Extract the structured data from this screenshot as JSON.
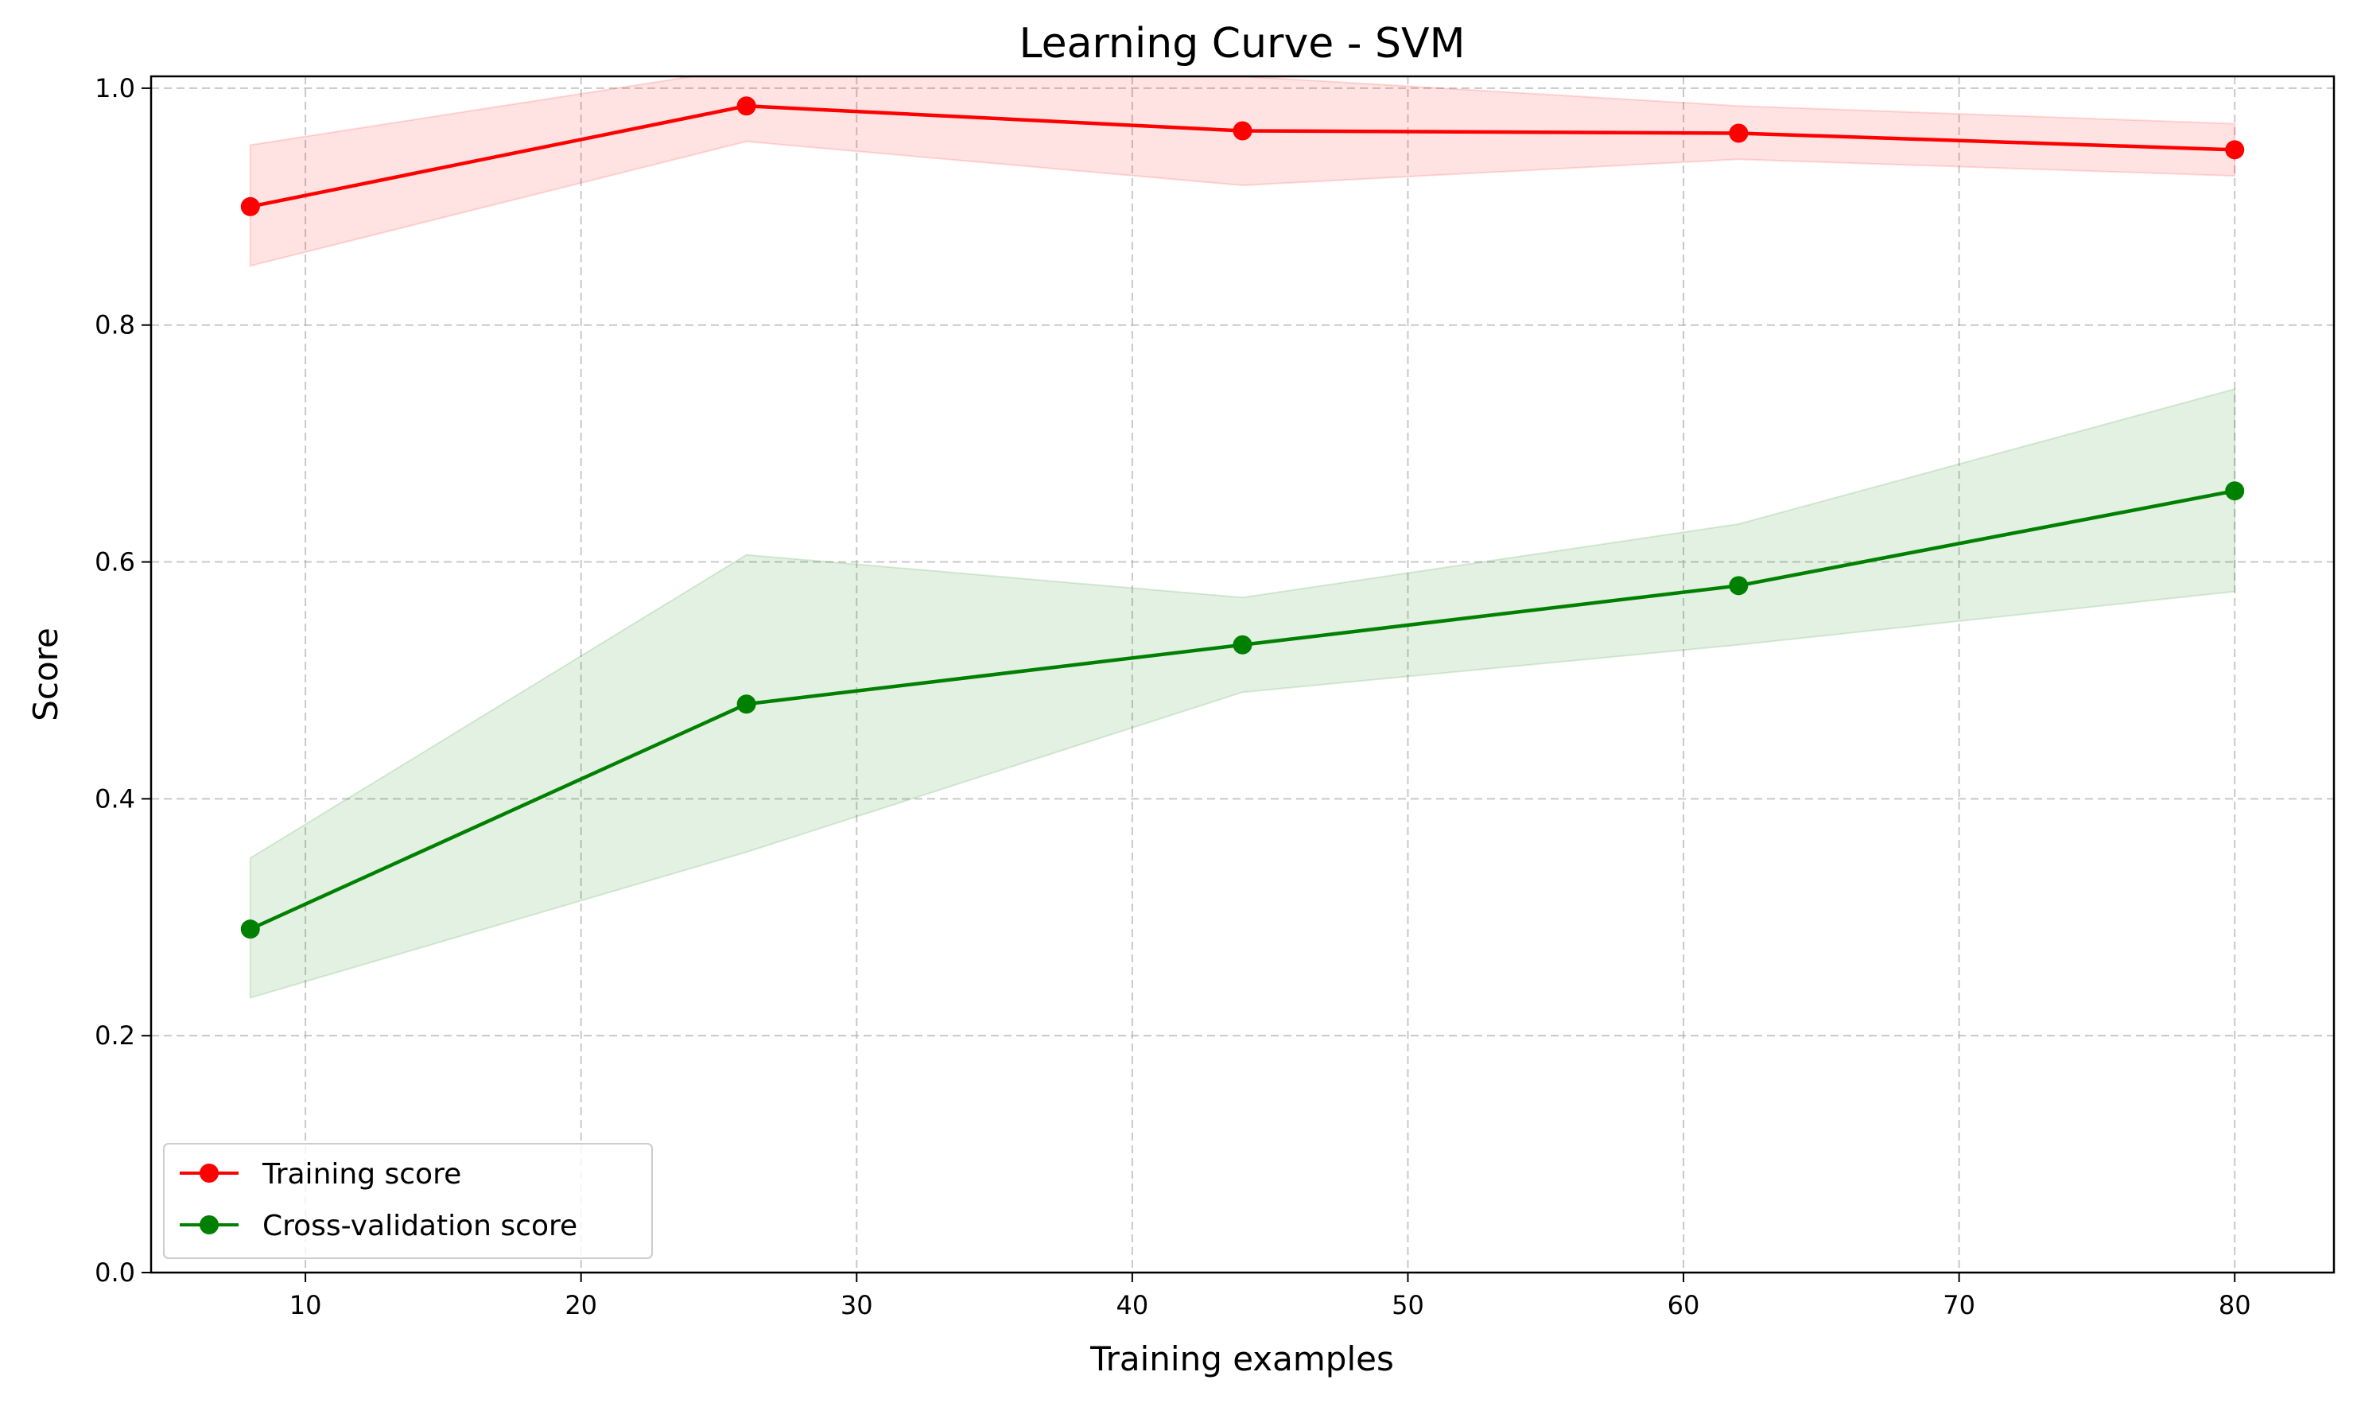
{
  "chart_data": {
    "type": "line",
    "title": "Learning Curve - SVM",
    "xlabel": "Training examples",
    "ylabel": "Score",
    "xlim": [
      4.4,
      83.6
    ],
    "ylim": [
      0.0,
      1.01
    ],
    "xticks": [
      10,
      20,
      30,
      40,
      50,
      60,
      70,
      80
    ],
    "yticks": [
      0.0,
      0.2,
      0.4,
      0.6,
      0.8,
      1.0
    ],
    "grid": true,
    "legend_position": "lower-left",
    "x": [
      8,
      26,
      44,
      62,
      80
    ],
    "series": [
      {
        "name": "Training score",
        "color": "#ff0000",
        "fill_color": "#ff0000",
        "values": [
          0.9,
          0.985,
          0.964,
          0.962,
          0.948
        ],
        "upper": [
          0.952,
          1.017,
          1.01,
          0.985,
          0.97
        ],
        "lower": [
          0.85,
          0.955,
          0.918,
          0.94,
          0.926
        ]
      },
      {
        "name": "Cross-validation score",
        "color": "#008000",
        "fill_color": "#008000",
        "values": [
          0.29,
          0.48,
          0.53,
          0.58,
          0.66
        ],
        "upper": [
          0.35,
          0.606,
          0.57,
          0.632,
          0.746
        ],
        "lower": [
          0.232,
          0.355,
          0.49,
          0.53,
          0.575
        ]
      }
    ]
  }
}
